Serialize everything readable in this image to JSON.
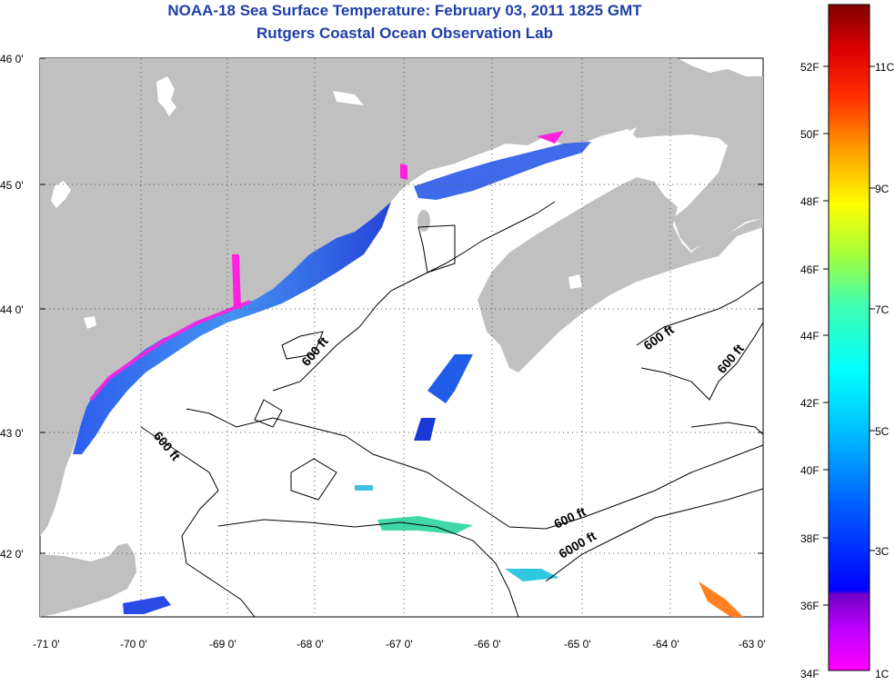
{
  "title_line1": "NOAA-18 Sea Surface Temperature:  February 03, 2011 1825 GMT",
  "title_line2": "Rutgers Coastal Ocean Observation Lab",
  "lat_labels": [
    "46 0'",
    "45 0'",
    "44 0'",
    "43 0'",
    "42 0'"
  ],
  "lon_labels": [
    "-71 0'",
    "-70 0'",
    "-69 0'",
    "-68 0'",
    "-67 0'",
    "-66 0'",
    "-65 0'",
    "-64 0'",
    "-63 0'"
  ],
  "depth_labels": [
    "600 ft",
    "600 ft",
    "600 ft",
    "600 ft",
    "600 ft",
    "6000 ft"
  ],
  "colorbar": {
    "f_labels": [
      "52F",
      "50F",
      "48F",
      "46F",
      "44F",
      "42F",
      "40F",
      "38F",
      "36F",
      "34F"
    ],
    "c_labels": [
      "11C",
      "9C",
      "7C",
      "5C",
      "3C",
      "1C"
    ]
  },
  "colors": {
    "land": "#c0c0c0",
    "ocean_bg": "#ffffff",
    "title": "#1f3fa8",
    "sst_cold": "#ff00ff",
    "sst_warm": "#7f0000"
  }
}
